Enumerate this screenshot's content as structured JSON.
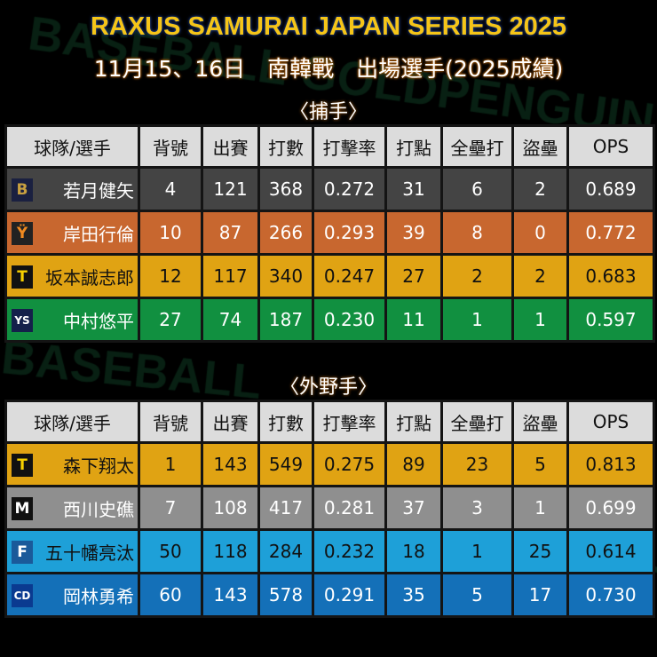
{
  "title": "RAXUS SAMURAI JAPAN SERIES 2025",
  "subtitle": "11月15、16日　南韓戰　出場選手(2025成績)",
  "watermark": [
    "BASEBALL GOLDPENGUIN",
    "BASEBALL",
    "GOLDPENGUIN"
  ],
  "columns": [
    "球隊/選手",
    "背號",
    "出賽",
    "打數",
    "打擊率",
    "打點",
    "全壘打",
    "盜壘",
    "OPS"
  ],
  "sections": [
    {
      "label": "〈捕手〉",
      "rows": [
        {
          "team_icon": "buffaloes-logo-icon",
          "logo_glyph": "B",
          "logo_bg": "#1a2040",
          "logo_fg": "#c8a040",
          "row_color": "#444444",
          "text": "dark",
          "name": "若月健矢",
          "number": "4",
          "games": "121",
          "at_bats": "368",
          "avg": "0.272",
          "rbi": "31",
          "hr": "6",
          "sb": "2",
          "ops": "0.689"
        },
        {
          "team_icon": "giants-logo-icon",
          "logo_glyph": "Ÿ",
          "logo_bg": "#222222",
          "logo_fg": "#f08a20",
          "row_color": "#c8672f",
          "text": "dark",
          "name": "岸田行倫",
          "number": "10",
          "games": "87",
          "at_bats": "266",
          "avg": "0.293",
          "rbi": "39",
          "hr": "8",
          "sb": "0",
          "ops": "0.772"
        },
        {
          "team_icon": "tigers-logo-icon",
          "logo_glyph": "T",
          "logo_bg": "#111111",
          "logo_fg": "#f5d000",
          "row_color": "#e0a313",
          "text": "light",
          "name": "坂本誠志郎",
          "number": "12",
          "games": "117",
          "at_bats": "340",
          "avg": "0.247",
          "rbi": "27",
          "hr": "2",
          "sb": "2",
          "ops": "0.683"
        },
        {
          "team_icon": "swallows-logo-icon",
          "logo_glyph": "YS",
          "logo_bg": "#14204a",
          "logo_fg": "#ffffff",
          "row_color": "#119040",
          "text": "dark",
          "name": "中村悠平",
          "number": "27",
          "games": "74",
          "at_bats": "187",
          "avg": "0.230",
          "rbi": "11",
          "hr": "1",
          "sb": "1",
          "ops": "0.597"
        }
      ]
    },
    {
      "label": "〈外野手〉",
      "rows": [
        {
          "team_icon": "tigers-logo-icon",
          "logo_glyph": "T",
          "logo_bg": "#111111",
          "logo_fg": "#f5d000",
          "row_color": "#e0a313",
          "text": "light",
          "name": "森下翔太",
          "number": "1",
          "games": "143",
          "at_bats": "549",
          "avg": "0.275",
          "rbi": "89",
          "hr": "23",
          "sb": "5",
          "ops": "0.813"
        },
        {
          "team_icon": "marines-logo-icon",
          "logo_glyph": "M",
          "logo_bg": "#111111",
          "logo_fg": "#ffffff",
          "row_color": "#8f8f8f",
          "text": "dark",
          "name": "西川史礁",
          "number": "7",
          "games": "108",
          "at_bats": "417",
          "avg": "0.281",
          "rbi": "37",
          "hr": "3",
          "sb": "1",
          "ops": "0.699"
        },
        {
          "team_icon": "fighters-logo-icon",
          "logo_glyph": "F",
          "logo_bg": "#1a5a9a",
          "logo_fg": "#ffffff",
          "row_color": "#1ea0d8",
          "text": "light",
          "name": "五十幡亮汰",
          "number": "50",
          "games": "118",
          "at_bats": "284",
          "avg": "0.232",
          "rbi": "18",
          "hr": "1",
          "sb": "25",
          "ops": "0.614"
        },
        {
          "team_icon": "dragons-logo-icon",
          "logo_glyph": "CD",
          "logo_bg": "#0a3a90",
          "logo_fg": "#ffffff",
          "row_color": "#1470b8",
          "text": "dark",
          "name": "岡林勇希",
          "number": "60",
          "games": "143",
          "at_bats": "578",
          "avg": "0.291",
          "rbi": "35",
          "hr": "5",
          "sb": "17",
          "ops": "0.730"
        }
      ]
    }
  ]
}
